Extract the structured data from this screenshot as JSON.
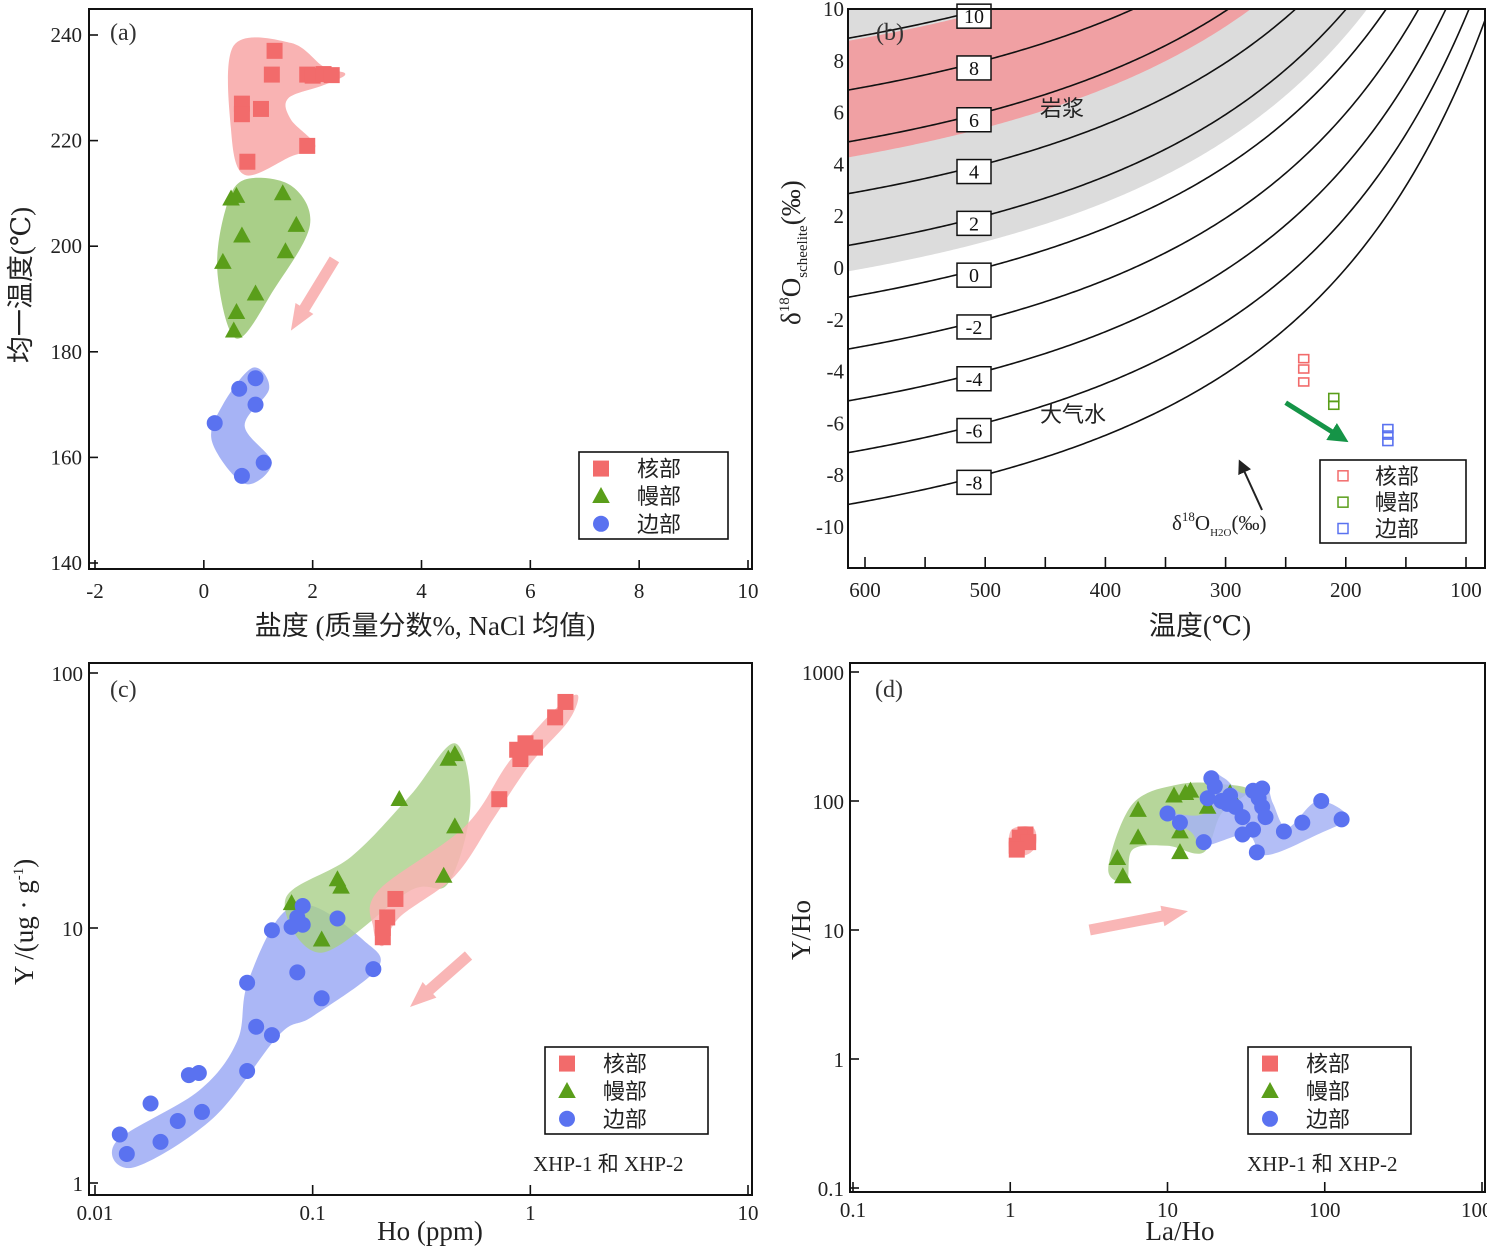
{
  "figure": {
    "colors": {
      "core": "#f26b6b",
      "core_field": "#f9b3b3",
      "mantle": "#5a9e1a",
      "mantle_field": "#a9cf88",
      "rim": "#5a72f0",
      "rim_field": "#a6b3f5",
      "magma_band": "#f0a0a3",
      "gray_band": "#dcdcdc",
      "trend_arrow_pink": "#f9b6b6",
      "trend_arrow_green": "#159447"
    },
    "legend_entries": [
      "核部",
      "幔部",
      "边部"
    ]
  },
  "chart_data": [
    {
      "id": "a",
      "type": "scatter",
      "panel_label": "(a)",
      "xlabel": "盐度 (质量分数%, NaCl 均值)",
      "ylabel": "均一温度(℃)",
      "xlim": [
        -2,
        10
      ],
      "ylim": [
        140,
        245
      ],
      "xticks": [
        -2,
        0,
        2,
        4,
        6,
        8,
        10
      ],
      "yticks": [
        140,
        160,
        180,
        200,
        220,
        240
      ],
      "legend_position": "bottom-right",
      "series": [
        {
          "name": "核部",
          "marker": "square",
          "points": [
            [
              1.3,
              237
            ],
            [
              1.25,
              232.5
            ],
            [
              1.9,
              232.5
            ],
            [
              2.0,
              232.3
            ],
            [
              2.2,
              232.6
            ],
            [
              2.35,
              232.4
            ],
            [
              0.7,
              227
            ],
            [
              0.7,
              225
            ],
            [
              1.05,
              226
            ],
            [
              0.8,
              216
            ],
            [
              1.9,
              219
            ]
          ]
        },
        {
          "name": "幔部",
          "marker": "triangle",
          "points": [
            [
              0.5,
              209
            ],
            [
              0.6,
              209.5
            ],
            [
              1.45,
              210
            ],
            [
              1.7,
              204
            ],
            [
              0.7,
              202
            ],
            [
              1.5,
              199
            ],
            [
              0.35,
              197
            ],
            [
              0.95,
              191
            ],
            [
              0.6,
              187.5
            ],
            [
              0.55,
              184
            ]
          ]
        },
        {
          "name": "边部",
          "marker": "circle",
          "points": [
            [
              0.95,
              175
            ],
            [
              0.65,
              173
            ],
            [
              0.95,
              170
            ],
            [
              0.2,
              166.5
            ],
            [
              1.1,
              159
            ],
            [
              0.7,
              156.5
            ]
          ]
        }
      ],
      "annotations": [
        {
          "type": "arrow",
          "text": "",
          "direction": "down-left"
        }
      ]
    },
    {
      "id": "b",
      "type": "line",
      "panel_label": "(b)",
      "xlabel": "温度(℃)",
      "ylabel": "δ18O scheelite (‰)",
      "ylabel_parts": {
        "delta": "δ",
        "sup": "18",
        "main": "O",
        "sub": "scheelite",
        "unit": "(‰)"
      },
      "xlim": [
        600,
        100
      ],
      "ylim": [
        -12,
        10
      ],
      "xticks": [
        600,
        500,
        400,
        300,
        200,
        100
      ],
      "yticks": [
        -10,
        -8,
        -6,
        -4,
        -2,
        0,
        2,
        4,
        6,
        8,
        10
      ],
      "contour_values": [
        10,
        8,
        6,
        4,
        2,
        0,
        -2,
        -4,
        -6,
        -8
      ],
      "contour_labels": [
        "10",
        "8",
        "6",
        "4",
        "2",
        "0",
        "-2",
        "-4",
        "-6",
        "-8"
      ],
      "regions": [
        {
          "name": "岩浆",
          "kind": "magma",
          "water_range": [
            5.5,
            10
          ]
        },
        {
          "name": "gray",
          "kind": "gray",
          "water_range": [
            1.5,
            12
          ]
        }
      ],
      "region_labels": {
        "magma": "岩浆",
        "meteoric": "大气水"
      },
      "curve_annotation": {
        "delta": "δ",
        "sup": "18",
        "main": "O",
        "sub": "H2O",
        "unit": "(‰)"
      },
      "legend_position": "bottom-right",
      "series": [
        {
          "name": "核部",
          "marker": "open-square",
          "points": [
            [
              235,
              -3.5
            ],
            [
              235,
              -3.9
            ],
            [
              235,
              -4.4
            ]
          ]
        },
        {
          "name": "幔部",
          "marker": "open-square",
          "points": [
            [
              210,
              -5.0
            ],
            [
              210,
              -5.3
            ]
          ]
        },
        {
          "name": "边部",
          "marker": "open-square",
          "points": [
            [
              165,
              -6.2
            ],
            [
              165,
              -6.45
            ],
            [
              165,
              -6.7
            ]
          ]
        }
      ],
      "annotations": [
        {
          "type": "arrow",
          "text": "",
          "from": [
            250,
            -5.2
          ],
          "to": [
            202,
            -6.6
          ]
        }
      ]
    },
    {
      "id": "c",
      "type": "scatter",
      "panel_label": "(c)",
      "xlabel": "Ho (ppm)",
      "ylabel": "Y /(ug · g-1)",
      "ylabel_parts": {
        "main": "Y /(ug · g",
        "sup": "-1",
        "end": ")"
      },
      "xscale": "log",
      "yscale": "log",
      "xlim": [
        0.01,
        10
      ],
      "ylim": [
        1,
        100
      ],
      "xticks": [
        0.01,
        0.1,
        1,
        10
      ],
      "xtick_labels": [
        "0.01",
        "0.1",
        "1",
        "10"
      ],
      "yticks": [
        1,
        10,
        100
      ],
      "ytick_labels": [
        "1",
        "10",
        "100"
      ],
      "legend_position": "bottom-right",
      "note": "XHP-1 和 XHP-2",
      "series": [
        {
          "name": "核部",
          "marker": "square",
          "points": [
            [
              1.45,
              77
            ],
            [
              1.3,
              67
            ],
            [
              0.95,
              53
            ],
            [
              0.87,
              50
            ],
            [
              0.9,
              46
            ],
            [
              1.05,
              51
            ],
            [
              0.72,
              32
            ],
            [
              0.24,
              13
            ],
            [
              0.22,
              11
            ],
            [
              0.21,
              10
            ],
            [
              0.21,
              9.2
            ]
          ]
        },
        {
          "name": "幔部",
          "marker": "triangle",
          "points": [
            [
              0.45,
              48
            ],
            [
              0.42,
              46
            ],
            [
              0.25,
              32
            ],
            [
              0.45,
              25
            ],
            [
              0.4,
              16
            ],
            [
              0.13,
              15.5
            ],
            [
              0.135,
              14.5
            ],
            [
              0.08,
              12.5
            ],
            [
              0.11,
              9
            ]
          ]
        },
        {
          "name": "边部",
          "marker": "circle",
          "points": [
            [
              0.09,
              12.2
            ],
            [
              0.085,
              11
            ],
            [
              0.09,
              10.3
            ],
            [
              0.08,
              10.1
            ],
            [
              0.13,
              10.9
            ],
            [
              0.065,
              9.8
            ],
            [
              0.19,
              6.9
            ],
            [
              0.05,
              6.1
            ],
            [
              0.085,
              6.7
            ],
            [
              0.11,
              5.3
            ],
            [
              0.055,
              4.1
            ],
            [
              0.065,
              3.8
            ],
            [
              0.05,
              2.75
            ],
            [
              0.027,
              2.65
            ],
            [
              0.03,
              2.7
            ],
            [
              0.018,
              2.05
            ],
            [
              0.031,
              1.9
            ],
            [
              0.024,
              1.75
            ],
            [
              0.013,
              1.55
            ],
            [
              0.02,
              1.45
            ],
            [
              0.014,
              1.3
            ]
          ]
        }
      ],
      "annotations": [
        {
          "type": "arrow",
          "text": "",
          "direction": "down-left"
        }
      ]
    },
    {
      "id": "d",
      "type": "scatter",
      "panel_label": "(d)",
      "xlabel": "La/Ho",
      "ylabel": "Y/Ho",
      "xscale": "log",
      "yscale": "log",
      "xlim": [
        0.1,
        1000
      ],
      "ylim": [
        0.1,
        1000
      ],
      "xticks": [
        0.1,
        1,
        10,
        100,
        1000
      ],
      "xtick_labels": [
        "0.1",
        "1",
        "10",
        "100",
        "1000"
      ],
      "yticks": [
        0.1,
        1,
        10,
        100,
        1000
      ],
      "ytick_labels": [
        "0.1",
        "1",
        "10",
        "100",
        "1000"
      ],
      "legend_position": "bottom-right",
      "note": "XHP-1 和 XHP-2",
      "series": [
        {
          "name": "核部",
          "marker": "square",
          "points": [
            [
              1.1,
              45
            ],
            [
              1.2,
              50
            ],
            [
              1.25,
              55
            ],
            [
              1.15,
              52
            ],
            [
              1.3,
              48
            ],
            [
              1.1,
              42
            ]
          ]
        },
        {
          "name": "幔部",
          "marker": "triangle",
          "points": [
            [
              13,
              115
            ],
            [
              14,
              120
            ],
            [
              11,
              110
            ],
            [
              6.5,
              85
            ],
            [
              6.5,
              52
            ],
            [
              12,
              58
            ],
            [
              12,
              40
            ],
            [
              4.8,
              36
            ],
            [
              5.2,
              26
            ],
            [
              18,
              90
            ],
            [
              25,
              115
            ]
          ]
        },
        {
          "name": "边部",
          "marker": "circle",
          "points": [
            [
              19,
              150
            ],
            [
              20,
              130
            ],
            [
              18,
              105
            ],
            [
              22,
              100
            ],
            [
              24,
              95
            ],
            [
              25,
              110
            ],
            [
              27,
              90
            ],
            [
              30,
              75
            ],
            [
              35,
              120
            ],
            [
              40,
              125
            ],
            [
              38,
              105
            ],
            [
              40,
              90
            ],
            [
              42,
              75
            ],
            [
              35,
              60
            ],
            [
              37,
              40
            ],
            [
              30,
              55
            ],
            [
              55,
              58
            ],
            [
              72,
              68
            ],
            [
              95,
              100
            ],
            [
              128,
              72
            ],
            [
              10,
              80
            ],
            [
              12,
              68
            ],
            [
              17,
              48
            ]
          ]
        }
      ],
      "annotations": [
        {
          "type": "arrow",
          "text": "",
          "direction": "up-right"
        }
      ]
    }
  ]
}
